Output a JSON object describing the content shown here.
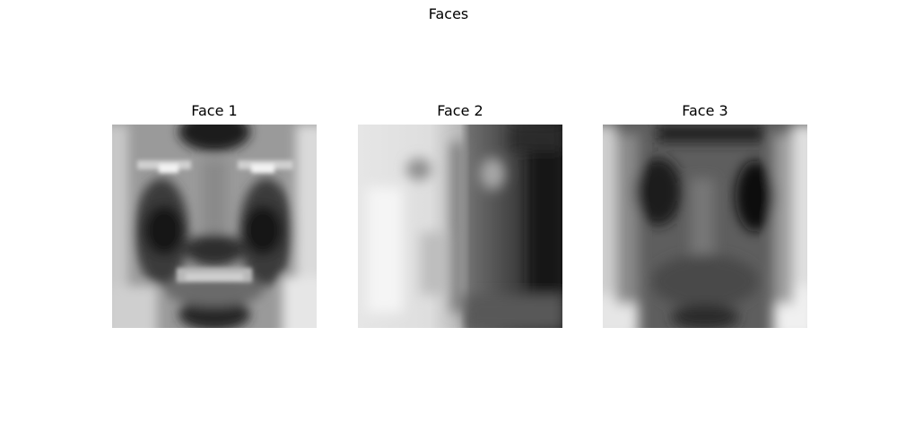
{
  "figure": {
    "title": "Faces"
  },
  "faces": [
    {
      "title": "Face 1"
    },
    {
      "title": "Face 2"
    },
    {
      "title": "Face 3"
    }
  ]
}
